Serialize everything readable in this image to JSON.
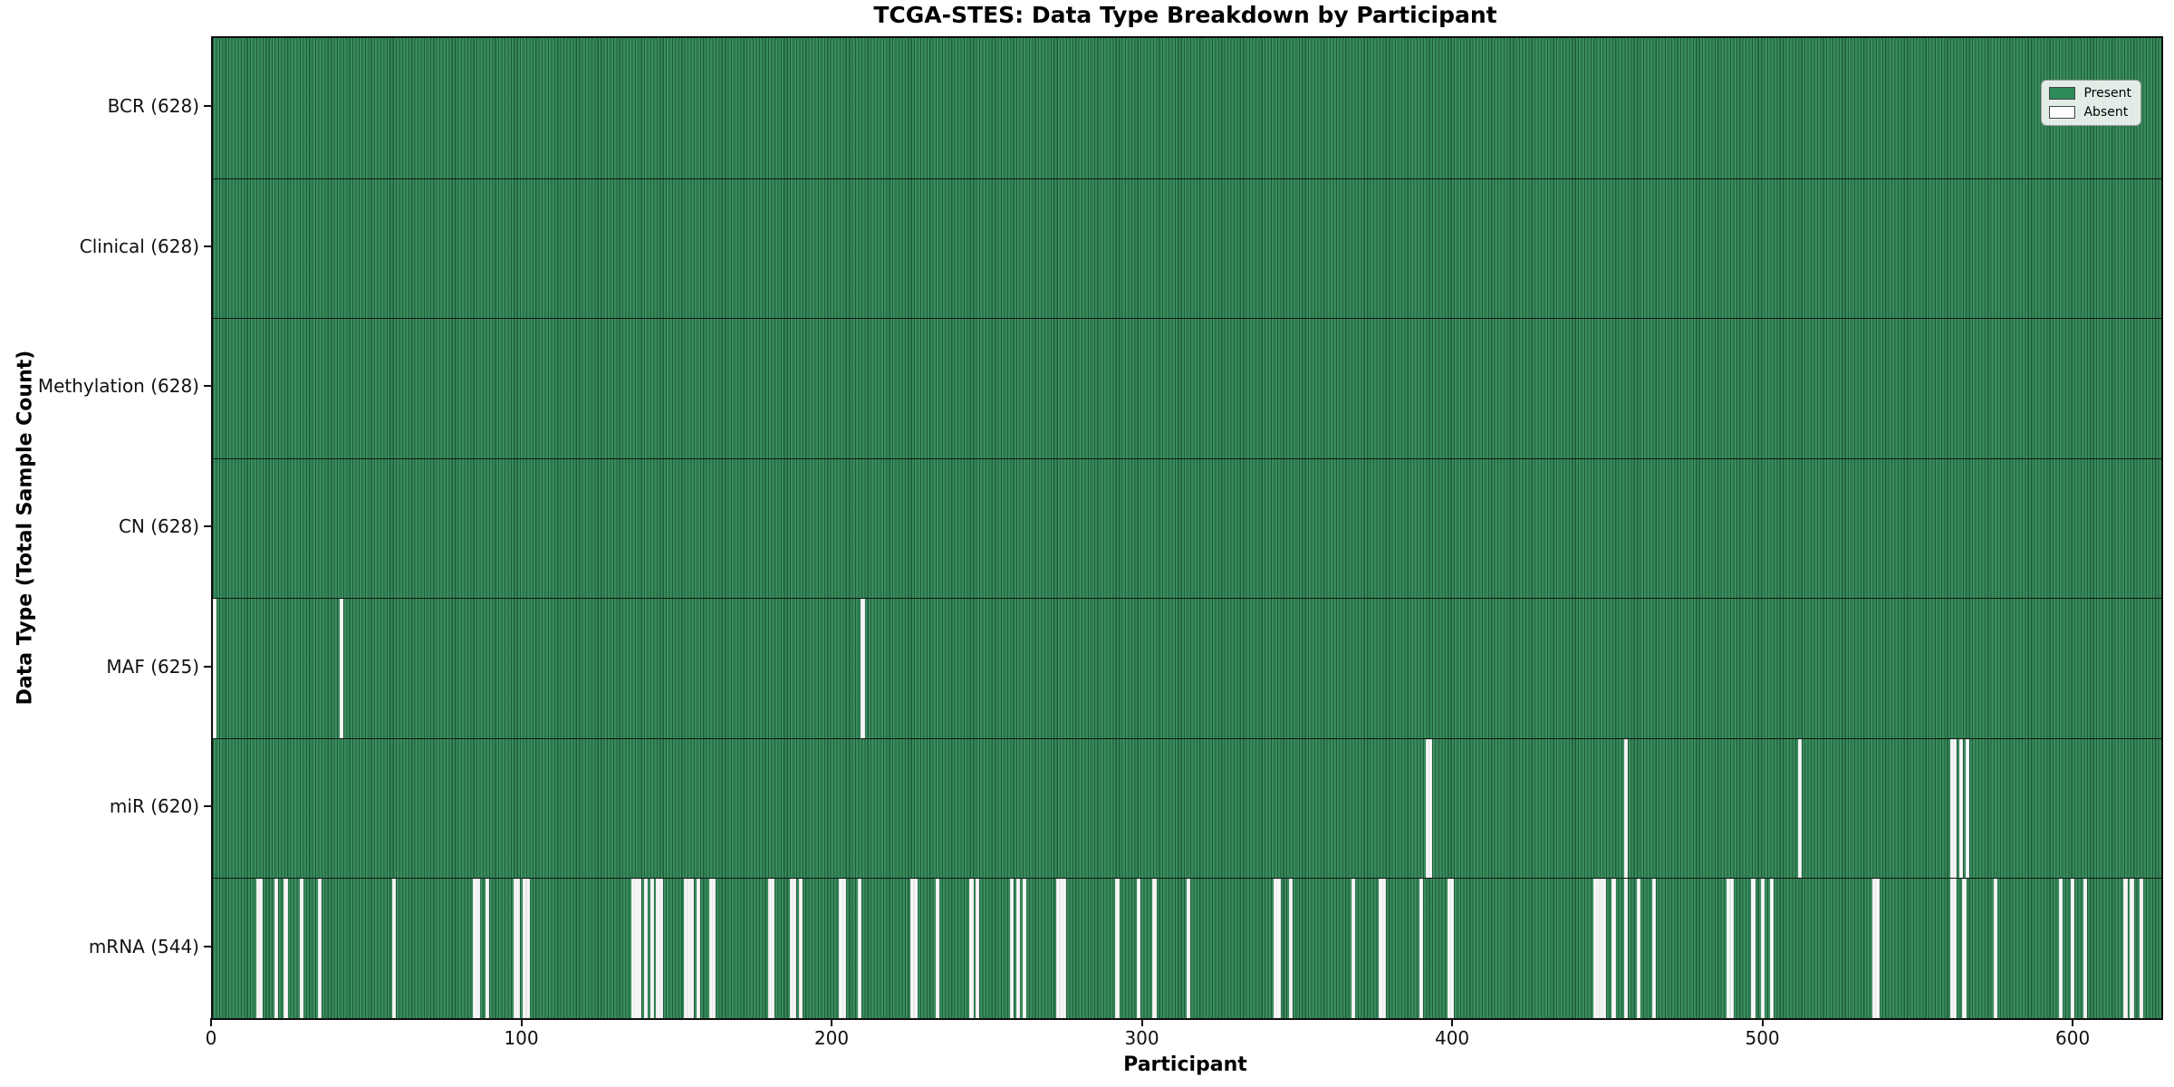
{
  "title": "TCGA-STES: Data Type Breakdown by Participant",
  "x_axis": {
    "label": "Participant",
    "ticks": [
      0,
      100,
      200,
      300,
      400,
      500,
      600
    ]
  },
  "y_axis": {
    "label": "Data Type (Total Sample Count)"
  },
  "legend": {
    "items": [
      {
        "label": "Present",
        "color": "#2e8b57"
      },
      {
        "label": "Absent",
        "color": "#ffffff"
      }
    ]
  },
  "colors": {
    "present_fill": "#2e8b57",
    "bar_edge": "#123b26",
    "absent_fill": "#f7f7f7",
    "plot_border": "#0f0f0f",
    "background": "#ffffff"
  },
  "chart_data": {
    "type": "heatmap",
    "title": "TCGA-STES: Data Type Breakdown by Participant",
    "xlabel": "Participant",
    "ylabel": "Data Type (Total Sample Count)",
    "n_participants": 628,
    "x_ticks": [
      0,
      100,
      200,
      300,
      400,
      500,
      600
    ],
    "legend_position": "upper right",
    "note": "Each row is green (present) for every participant except the listed absent indices; absent positions are estimated from pixel measurement.",
    "rows": [
      {
        "label": "BCR (628)",
        "data_type": "BCR",
        "present_count": 628,
        "absent_participants": []
      },
      {
        "label": "Clinical (628)",
        "data_type": "Clinical",
        "present_count": 628,
        "absent_participants": []
      },
      {
        "label": "Methylation (628)",
        "data_type": "Methylation",
        "present_count": 628,
        "absent_participants": []
      },
      {
        "label": "CN (628)",
        "data_type": "CN",
        "present_count": 628,
        "absent_participants": []
      },
      {
        "label": "MAF (625)",
        "data_type": "MAF",
        "present_count": 625,
        "absent_participants": [
          0,
          41,
          209
        ]
      },
      {
        "label": "miR (620)",
        "data_type": "miR",
        "present_count": 620,
        "absent_participants": [
          391,
          392,
          455,
          511,
          560,
          561,
          563,
          565
        ]
      },
      {
        "label": "mRNA (544)",
        "data_type": "mRNA",
        "present_count": 544,
        "absent_participants": [
          14,
          15,
          20,
          23,
          28,
          34,
          58,
          84,
          85,
          88,
          97,
          98,
          100,
          101,
          135,
          136,
          137,
          139,
          141,
          143,
          144,
          152,
          153,
          154,
          156,
          160,
          161,
          179,
          180,
          186,
          187,
          189,
          202,
          203,
          208,
          225,
          226,
          233,
          244,
          246,
          257,
          259,
          261,
          272,
          273,
          274,
          291,
          298,
          303,
          314,
          342,
          343,
          347,
          367,
          376,
          377,
          389,
          398,
          399,
          445,
          446,
          447,
          448,
          451,
          455,
          459,
          464,
          488,
          489,
          496,
          499,
          502,
          535,
          536,
          560,
          561,
          564,
          574,
          595,
          599,
          603,
          616,
          618,
          621
        ]
      }
    ]
  }
}
